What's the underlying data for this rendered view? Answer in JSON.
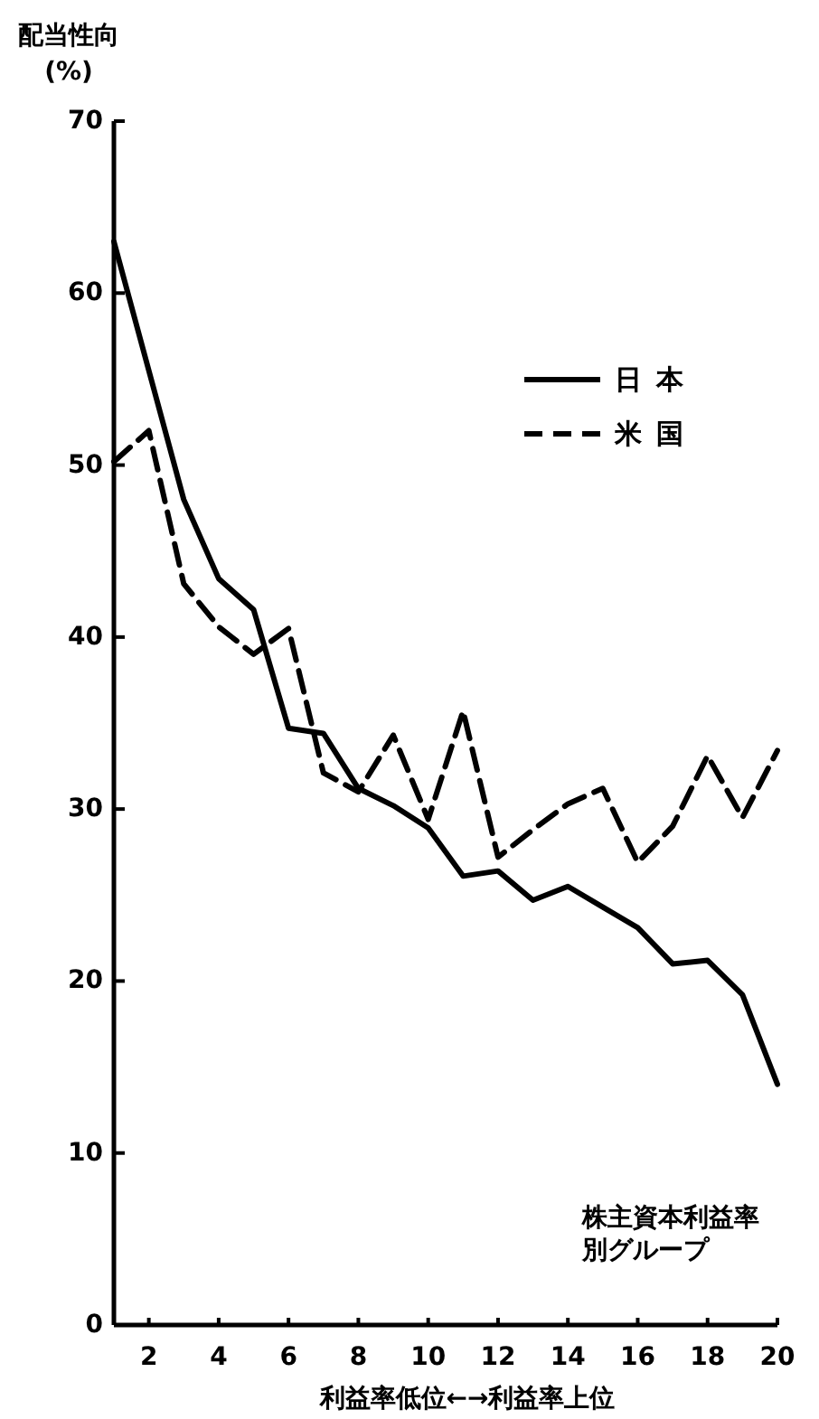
{
  "chart_data": {
    "type": "line",
    "ylabel": "配当性向 (%)",
    "xlabel": "利益率低位←→利益率上位",
    "annotations": [
      "株主資本利益率別グループ"
    ],
    "x": [
      1,
      2,
      3,
      4,
      5,
      6,
      7,
      8,
      9,
      10,
      11,
      12,
      13,
      14,
      15,
      16,
      17,
      18,
      19,
      20
    ],
    "xlim": [
      1,
      20
    ],
    "xticks": [
      2,
      4,
      6,
      8,
      10,
      12,
      14,
      16,
      18,
      20
    ],
    "ylim": [
      0,
      70
    ],
    "yticks": [
      0,
      10,
      20,
      30,
      40,
      50,
      60,
      70
    ],
    "grid": false,
    "legend": "top right",
    "marker": "none",
    "series": [
      {
        "name": "日本",
        "color": "#000000",
        "line_style": "solid",
        "values": [
          63,
          55.5,
          48,
          43.4,
          41.6,
          34.7,
          34.4,
          31.2,
          30.2,
          28.9,
          26.1,
          26.4,
          24.7,
          25.5,
          24.3,
          23.1,
          21,
          21.2,
          19.2,
          14
        ]
      },
      {
        "name": "米国",
        "color": "#000000",
        "line_style": "dashed",
        "values": [
          50.2,
          52,
          43.1,
          40.6,
          39,
          40.5,
          32.1,
          31,
          34.3,
          29.4,
          35.7,
          27.2,
          28.8,
          30.3,
          31.2,
          26.9,
          29,
          33.1,
          29.5,
          33.4
        ]
      }
    ]
  }
}
